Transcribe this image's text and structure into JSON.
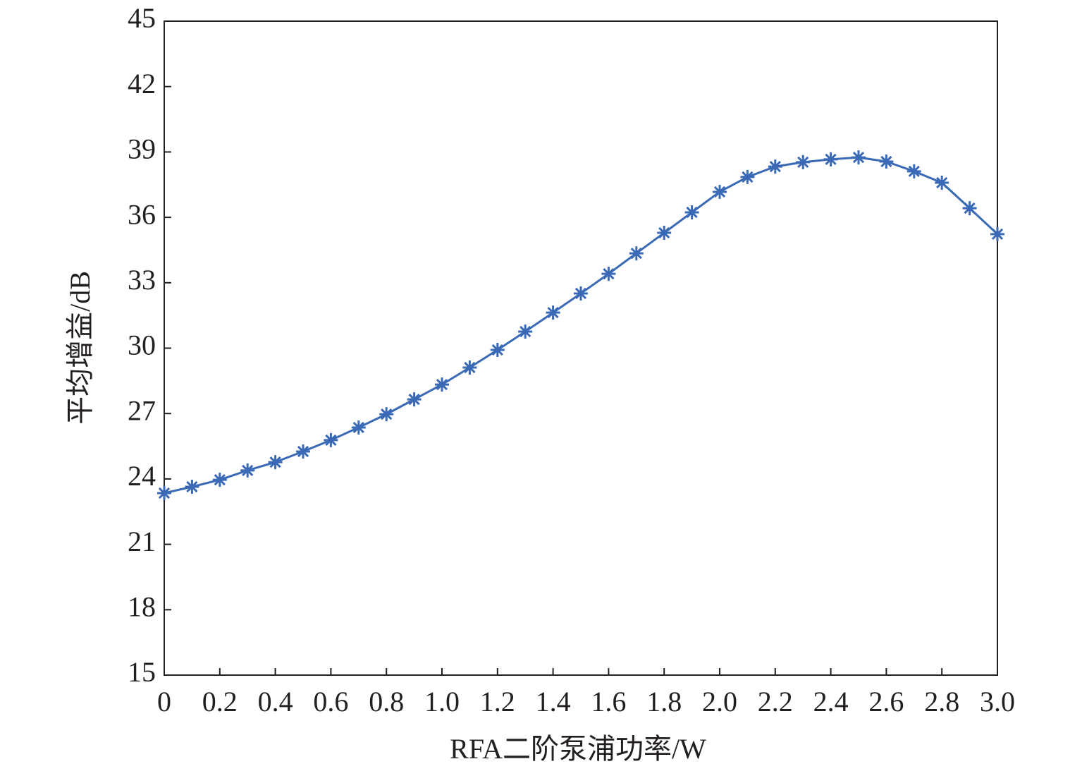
{
  "chart_data": {
    "type": "line",
    "x_label": "RFA二阶泵浦功率/W",
    "y_label": "平均增益/dB",
    "x": [
      0,
      0.1,
      0.2,
      0.3,
      0.4,
      0.5,
      0.6,
      0.7,
      0.8,
      0.9,
      1.0,
      1.1,
      1.2,
      1.3,
      1.4,
      1.5,
      1.6,
      1.7,
      1.8,
      1.9,
      2.0,
      2.1,
      2.2,
      2.3,
      2.4,
      2.5,
      2.6,
      2.7,
      2.8,
      2.9,
      3.0
    ],
    "series": [
      {
        "color": "#3a6ab5",
        "marker": "asterisk",
        "values": [
          23.35,
          23.64,
          23.96,
          24.39,
          24.77,
          25.26,
          25.78,
          26.36,
          26.97,
          27.65,
          28.33,
          29.11,
          29.92,
          30.76,
          31.63,
          32.51,
          33.41,
          34.35,
          35.29,
          36.23,
          37.17,
          37.85,
          38.33,
          38.53,
          38.66,
          38.75,
          38.56,
          38.11,
          37.59,
          36.42,
          35.23
        ]
      }
    ],
    "xlim": [
      0,
      3.0
    ],
    "xticks": [
      0,
      0.2,
      0.4,
      0.6,
      0.8,
      {
        "value": 1.0,
        "label": "1.0"
      },
      1.2,
      1.4,
      1.6,
      1.8,
      {
        "value": 2.0,
        "label": "2.0"
      },
      2.2,
      2.4,
      2.6,
      2.8,
      {
        "value": 3.0,
        "label": "3.0"
      }
    ],
    "ylim": [
      15,
      45
    ],
    "yticks": [
      15,
      18,
      21,
      24,
      27,
      30,
      33,
      36,
      39,
      42,
      45
    ],
    "grid": false
  }
}
